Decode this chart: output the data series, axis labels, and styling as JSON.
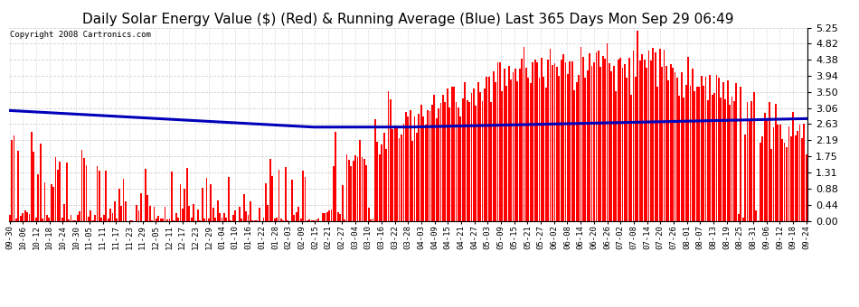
{
  "title": "Daily Solar Energy Value ($) (Red) & Running Average (Blue) Last 365 Days Mon Sep 29 06:49",
  "copyright": "Copyright 2008 Cartronics.com",
  "yticks": [
    0.0,
    0.44,
    0.88,
    1.31,
    1.75,
    2.19,
    2.63,
    3.06,
    3.5,
    3.94,
    4.38,
    4.82,
    5.25
  ],
  "ymax": 5.25,
  "ymin": 0.0,
  "bar_color": "#FF0000",
  "avg_color": "#0000BB",
  "bg_color": "#FFFFFF",
  "grid_color": "#CCCCCC",
  "title_fontsize": 11,
  "tick_fontsize": 8,
  "x_labels": [
    "09-30",
    "10-06",
    "10-12",
    "10-18",
    "10-24",
    "10-30",
    "11-05",
    "11-11",
    "11-17",
    "11-23",
    "11-29",
    "12-05",
    "12-11",
    "12-17",
    "12-23",
    "12-29",
    "01-04",
    "01-10",
    "01-16",
    "01-22",
    "01-28",
    "02-03",
    "02-09",
    "02-15",
    "02-21",
    "02-27",
    "03-04",
    "03-10",
    "03-16",
    "03-22",
    "03-28",
    "04-03",
    "04-09",
    "04-15",
    "04-21",
    "04-27",
    "05-03",
    "05-09",
    "05-15",
    "05-21",
    "05-27",
    "06-02",
    "06-08",
    "06-14",
    "06-20",
    "06-26",
    "07-02",
    "07-08",
    "07-14",
    "07-20",
    "07-26",
    "08-01",
    "08-07",
    "08-13",
    "08-19",
    "08-25",
    "08-31",
    "09-06",
    "09-12",
    "09-18",
    "09-24"
  ],
  "num_bars": 365,
  "seed": 7
}
